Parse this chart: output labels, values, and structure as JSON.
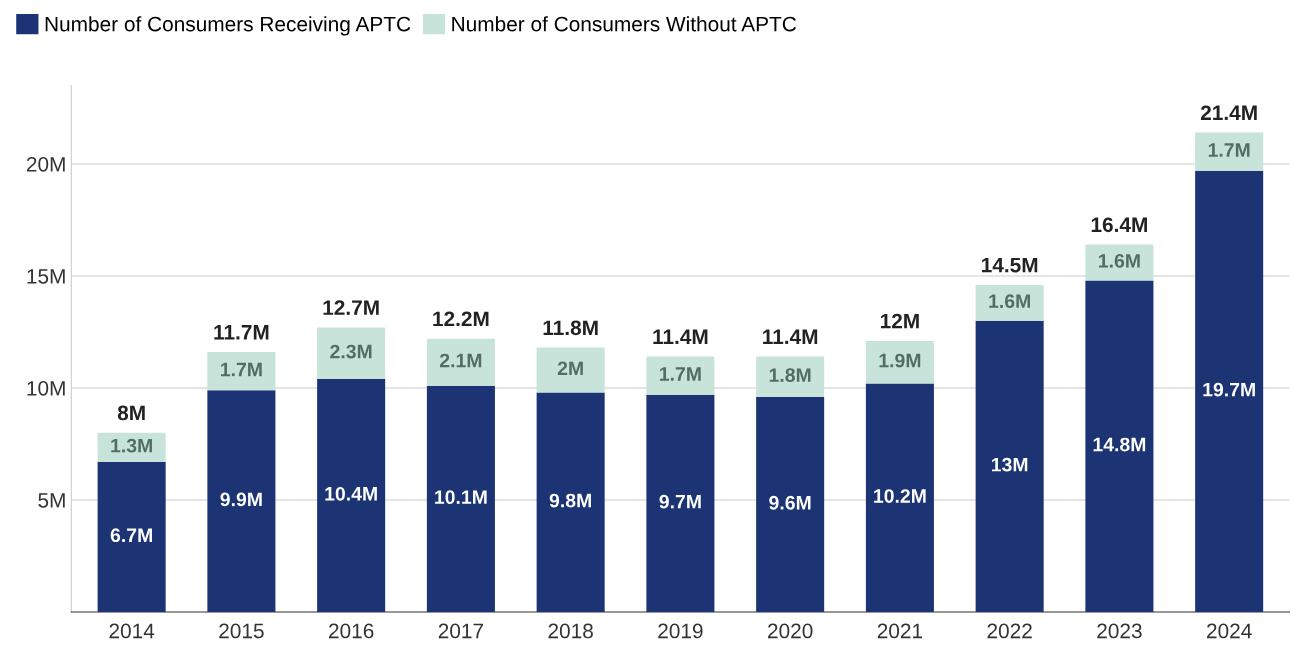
{
  "chart_data": {
    "type": "bar",
    "stacked": true,
    "categories": [
      "2014",
      "2015",
      "2016",
      "2017",
      "2018",
      "2019",
      "2020",
      "2021",
      "2022",
      "2023",
      "2024"
    ],
    "series": [
      {
        "name": "Number of Consumers Receiving APTC",
        "color": "#1c3473",
        "values": [
          6.7,
          9.9,
          10.4,
          10.1,
          9.8,
          9.7,
          9.6,
          10.2,
          13,
          14.8,
          19.7
        ],
        "value_labels": [
          "6.7M",
          "9.9M",
          "10.4M",
          "10.1M",
          "9.8M",
          "9.7M",
          "9.6M",
          "10.2M",
          "13M",
          "14.8M",
          "19.7M"
        ]
      },
      {
        "name": "Number of Consumers Without APTC",
        "color": "#c8e3d9",
        "values": [
          1.3,
          1.7,
          2.3,
          2.1,
          2,
          1.7,
          1.8,
          1.9,
          1.6,
          1.6,
          1.7
        ],
        "value_labels": [
          "1.3M",
          "1.7M",
          "2.3M",
          "2.1M",
          "2M",
          "1.7M",
          "1.8M",
          "1.9M",
          "1.6M",
          "1.6M",
          "1.7M"
        ]
      }
    ],
    "totals": [
      "8M",
      "11.7M",
      "12.7M",
      "12.2M",
      "11.8M",
      "11.4M",
      "11.4M",
      "12M",
      "14.5M",
      "16.4M",
      "21.4M"
    ],
    "ylim": [
      0,
      23.5
    ],
    "yticks": [
      {
        "value": 5,
        "label": "5M"
      },
      {
        "value": 10,
        "label": "10M"
      },
      {
        "value": 15,
        "label": "15M"
      },
      {
        "value": 20,
        "label": "20M"
      }
    ],
    "grid": "y",
    "legend": "top left"
  }
}
